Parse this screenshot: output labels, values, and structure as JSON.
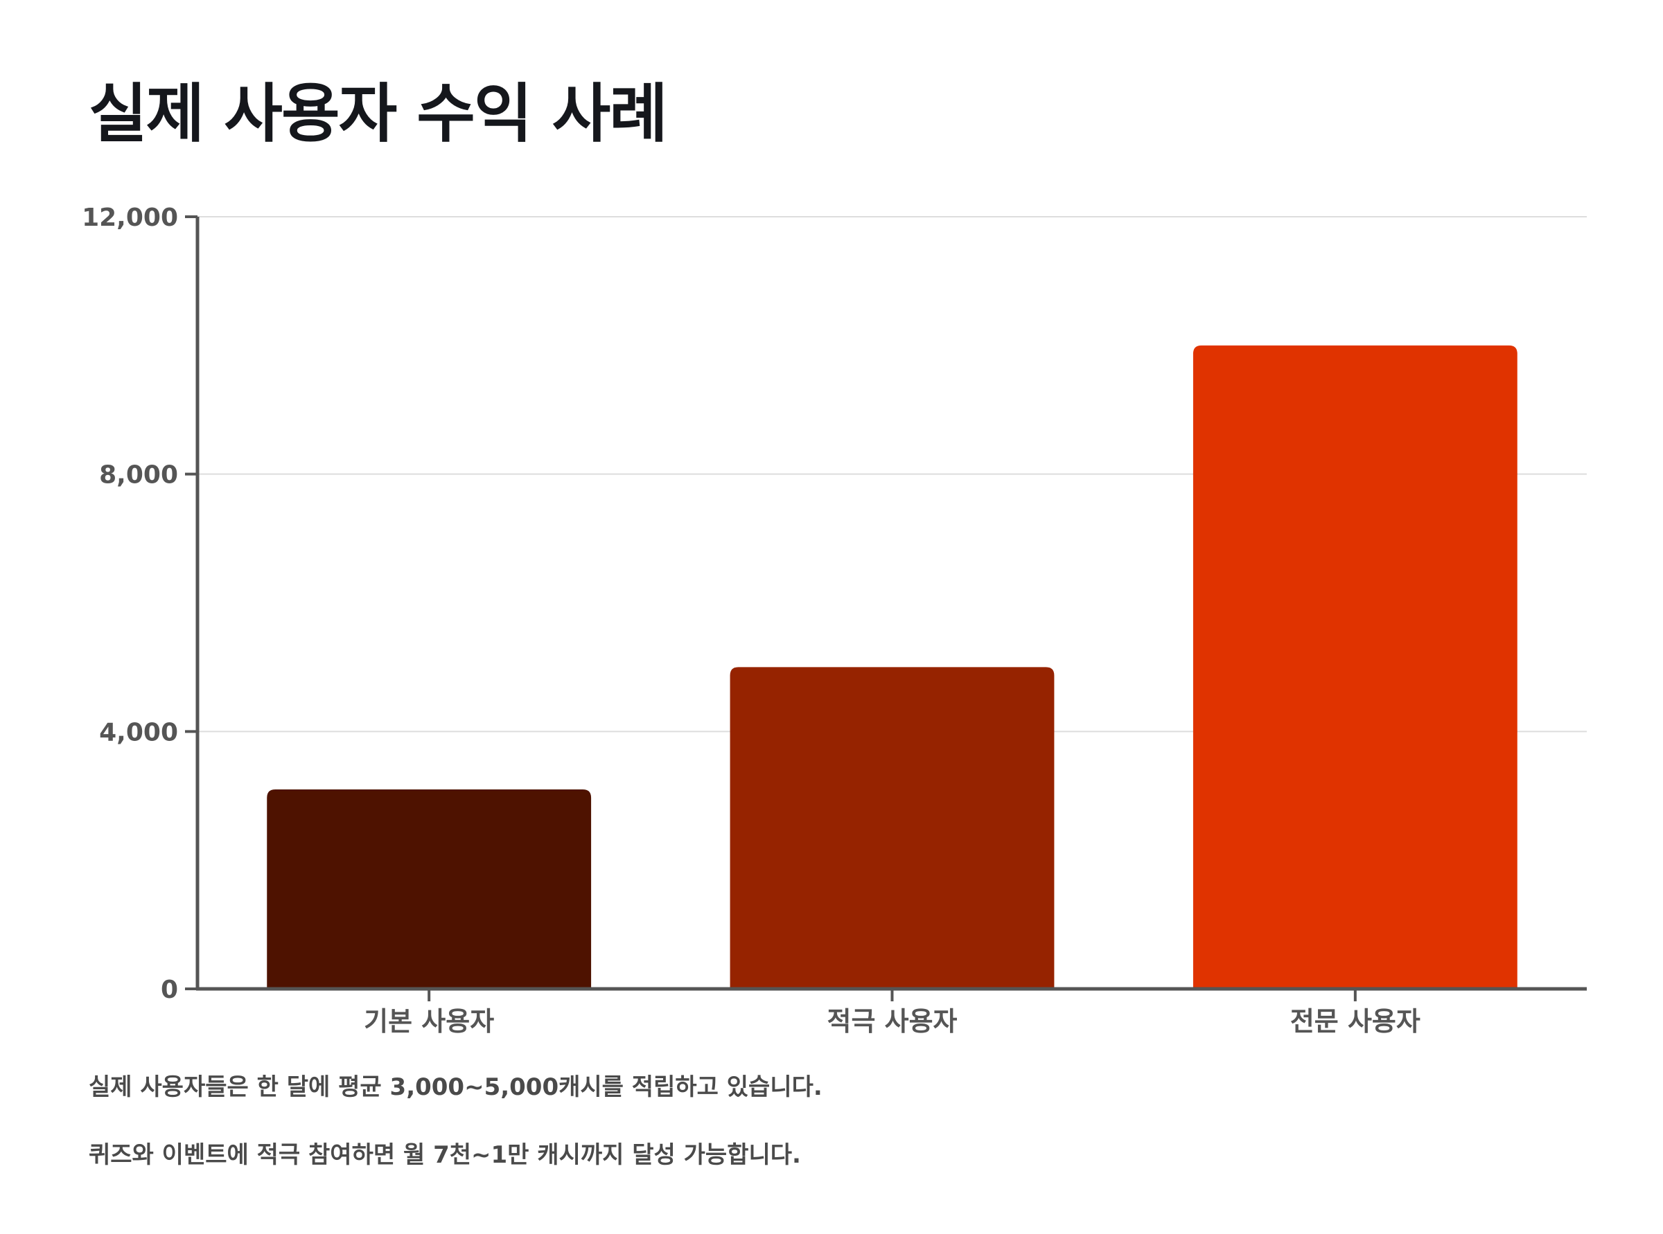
{
  "chart_data": {
    "type": "bar",
    "title": "실제 사용자 수익 사례",
    "categories": [
      "기본 사용자",
      "적극 사용자",
      "전문 사용자"
    ],
    "values": [
      3100,
      5000,
      10000
    ],
    "colors": [
      "#4e1200",
      "#962300",
      "#e03300"
    ],
    "ylim": [
      0,
      12000
    ],
    "yticks": [
      0,
      4000,
      8000,
      12000
    ],
    "ytick_labels": [
      "0",
      "4,000",
      "8,000",
      "12,000"
    ],
    "xlabel": "",
    "ylabel": "",
    "grid": true,
    "legend": "none"
  },
  "notes": [
    "실제 사용자들은 한 달에 평균 3,000~5,000캐시를 적립하고 있습니다.",
    "퀴즈와 이벤트에 적극 참여하면 월 7천~1만 캐시까지 달성 가능합니다."
  ],
  "colors": {
    "axis": "#555555",
    "grid": "#dddddd",
    "tick_text": "#555555",
    "title": "#15171c"
  }
}
